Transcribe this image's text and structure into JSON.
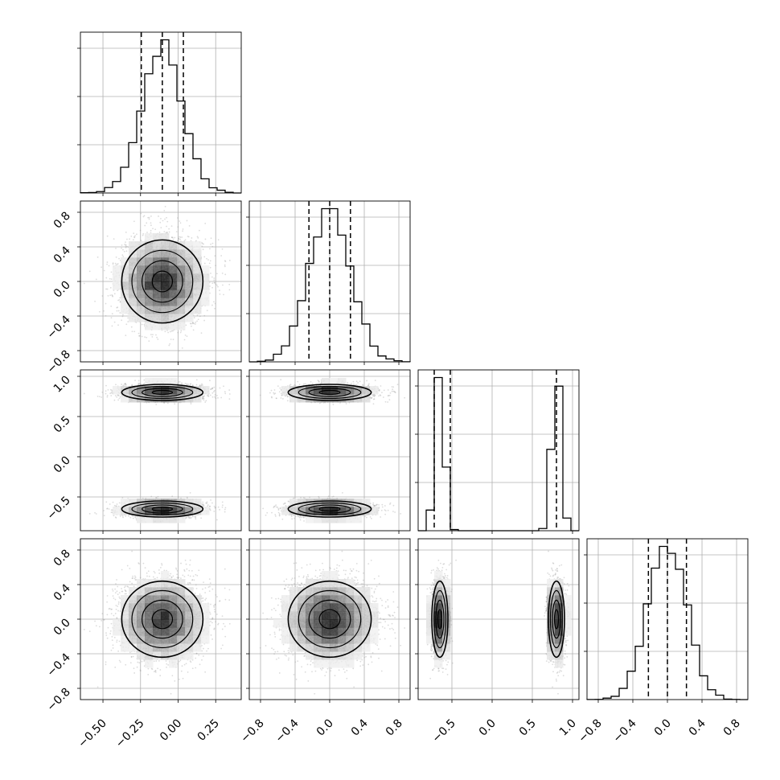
{
  "chart_data": {
    "type": "corner",
    "grid": true,
    "colors": {
      "histogram": "#000000",
      "scatter": "#9a9a9a",
      "density_dark": "#000000",
      "density_light": "#ffffff",
      "grid": "#b0b0b0"
    },
    "parameters": [
      {
        "index": 0,
        "range": [
          -0.65,
          0.42
        ],
        "ticks": [
          -0.5,
          -0.25,
          0.0,
          0.25
        ],
        "tick_labels": [
          "−0.50",
          "−0.25",
          "0.00",
          "0.25"
        ],
        "quantiles": [
          -0.245,
          -0.105,
          0.035
        ],
        "samples": {
          "type": "gaussian",
          "mean": -0.105,
          "sd": 0.135
        }
      },
      {
        "index": 1,
        "range": [
          -0.93,
          0.93
        ],
        "ticks": [
          -0.8,
          -0.4,
          0.0,
          0.4,
          0.8
        ],
        "tick_labels": [
          "−0.8",
          "−0.4",
          "0.0",
          "0.4",
          "0.8"
        ],
        "quantiles": [
          -0.24,
          0.0,
          0.24
        ],
        "samples": {
          "type": "gaussian",
          "mean": 0.0,
          "sd": 0.24
        }
      },
      {
        "index": 2,
        "range": [
          -0.92,
          1.08
        ],
        "ticks": [
          -0.5,
          0.0,
          0.5,
          1.0
        ],
        "tick_labels": [
          "−0.5",
          "0.0",
          "0.5",
          "1.0"
        ],
        "quantiles": [
          -0.72,
          -0.52,
          0.8
        ],
        "samples": {
          "type": "bimodal",
          "modes": [
            {
              "mean": -0.65,
              "sd": 0.05,
              "weight": 0.5
            },
            {
              "mean": 0.8,
              "sd": 0.05,
              "weight": 0.5
            }
          ]
        }
      },
      {
        "index": 3,
        "range": [
          -0.93,
          0.93
        ],
        "ticks": [
          -0.8,
          -0.4,
          0.0,
          0.4,
          0.8
        ],
        "tick_labels": [
          "−0.8",
          "−0.4",
          "0.0",
          "0.4",
          "0.8"
        ],
        "quantiles": [
          -0.22,
          0.0,
          0.22
        ],
        "samples": {
          "type": "gaussian",
          "mean": 0.0,
          "sd": 0.22
        }
      }
    ]
  }
}
